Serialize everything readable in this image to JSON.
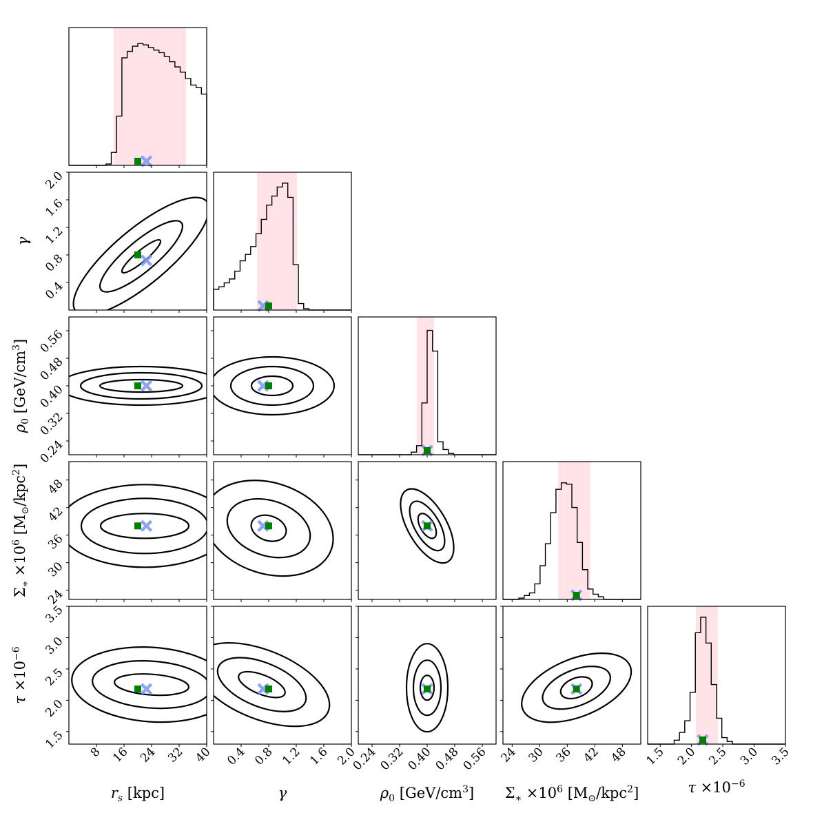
{
  "chart_data": {
    "type": "corner",
    "colors": {
      "credible_band": "#ffc0cb",
      "true_marker": "#008000",
      "best_fit_marker": "#7a96f0",
      "line": "#000000"
    },
    "markers": {
      "true_value": "green-square",
      "best_fit": "blue-cross"
    },
    "parameters": [
      {
        "key": "rs",
        "label": "r_s [kpc]",
        "range": [
          0,
          40
        ],
        "ticks": [
          8,
          16,
          24,
          32,
          40
        ],
        "tick_labels": [
          "8",
          "16",
          "24",
          "32",
          "40"
        ],
        "true_value": 20,
        "best_fit": 22.5,
        "band": [
          13.0,
          34.0
        ],
        "hist": [
          0,
          0,
          0,
          0,
          0,
          0,
          0,
          0.01,
          0.1,
          0.38,
          0.83,
          0.88,
          0.92,
          0.94,
          0.93,
          0.91,
          0.89,
          0.87,
          0.84,
          0.8,
          0.76,
          0.72,
          0.67,
          0.62,
          0.6,
          0.55
        ]
      },
      {
        "key": "gamma",
        "label": "γ",
        "range": [
          0,
          2.0
        ],
        "ticks": [
          0.4,
          0.8,
          1.2,
          1.6,
          2.0
        ],
        "tick_labels": [
          "0.4",
          "0.8",
          "1.2",
          "1.6",
          "2.0"
        ],
        "true_value": 0.8,
        "best_fit": 0.72,
        "band": [
          0.63,
          1.21
        ],
        "hist": [
          0.16,
          0.18,
          0.21,
          0.24,
          0.3,
          0.38,
          0.43,
          0.49,
          0.59,
          0.7,
          0.81,
          0.88,
          0.95,
          0.98,
          0.87,
          0.35,
          0.05,
          0.01,
          0,
          0,
          0,
          0,
          0,
          0,
          0,
          0
        ]
      },
      {
        "key": "rho0",
        "label": "ρ_0 [GeV/cm^3]",
        "range": [
          0.2,
          0.6
        ],
        "ticks": [
          0.24,
          0.32,
          0.4,
          0.48,
          0.56
        ],
        "tick_labels": [
          "0.24",
          "0.32",
          "0.40",
          "0.48",
          "0.56"
        ],
        "true_value": 0.4,
        "best_fit": 0.4,
        "band": [
          0.37,
          0.42
        ],
        "hist": [
          0,
          0,
          0,
          0,
          0,
          0,
          0,
          0,
          0,
          0,
          0.02,
          0.07,
          0.4,
          0.96,
          0.8,
          0.1,
          0.04,
          0.01,
          0,
          0,
          0,
          0,
          0,
          0,
          0,
          0
        ]
      },
      {
        "key": "sigma",
        "label": "Σ_* ×10^6 [M_⊙/kpc^2]",
        "range": [
          22,
          52
        ],
        "ticks": [
          24,
          30,
          36,
          42,
          48
        ],
        "tick_labels": [
          "24",
          "30",
          "36",
          "42",
          "48"
        ],
        "true_value": 38,
        "best_fit": 38,
        "band": [
          34.0,
          41.0
        ],
        "hist": [
          0,
          0,
          0,
          0.01,
          0.03,
          0.05,
          0.12,
          0.26,
          0.43,
          0.67,
          0.85,
          0.9,
          0.89,
          0.71,
          0.44,
          0.23,
          0.08,
          0.04,
          0.02,
          0,
          0,
          0,
          0,
          0,
          0,
          0
        ]
      },
      {
        "key": "tau",
        "label": "τ ×10^-6",
        "range": [
          1.3,
          3.5
        ],
        "ticks": [
          1.5,
          2.0,
          2.5,
          3.0,
          3.5
        ],
        "tick_labels": [
          "1.5",
          "2.0",
          "2.5",
          "3.0",
          "3.5"
        ],
        "true_value": 2.18,
        "best_fit": 2.18,
        "band": [
          2.07,
          2.42
        ],
        "hist": [
          0,
          0,
          0,
          0,
          0,
          0.03,
          0.09,
          0.18,
          0.4,
          0.86,
          0.98,
          0.78,
          0.46,
          0.2,
          0.05,
          0.02,
          0,
          0,
          0,
          0,
          0,
          0,
          0,
          0,
          0,
          0
        ]
      }
    ],
    "contours": [
      {
        "pair": [
          "gamma",
          "rs"
        ],
        "center": [
          21,
          0.78
        ],
        "tilt_deg": 40,
        "radii": [
          [
            0.18,
            0.04
          ],
          [
            0.38,
            0.11
          ],
          [
            0.62,
            0.2
          ]
        ]
      },
      {
        "pair": [
          "rho0",
          "rs"
        ],
        "center": [
          21,
          0.4
        ],
        "tilt_deg": 0,
        "radii": [
          [
            0.3,
            0.045
          ],
          [
            0.44,
            0.095
          ],
          [
            0.6,
            0.14
          ]
        ]
      },
      {
        "pair": [
          "sigma",
          "rs"
        ],
        "center": [
          22,
          38
        ],
        "tilt_deg": 0,
        "radii": [
          [
            0.32,
            0.09
          ],
          [
            0.46,
            0.2
          ],
          [
            0.62,
            0.3
          ]
        ]
      },
      {
        "pair": [
          "tau",
          "rs"
        ],
        "center": [
          24,
          2.25
        ],
        "tilt_deg": -4,
        "radii": [
          [
            0.27,
            0.075
          ],
          [
            0.43,
            0.17
          ],
          [
            0.58,
            0.27
          ]
        ]
      },
      {
        "pair": [
          "rho0",
          "gamma"
        ],
        "center": [
          0.85,
          0.4
        ],
        "tilt_deg": 0,
        "radii": [
          [
            0.15,
            0.07
          ],
          [
            0.3,
            0.14
          ],
          [
            0.45,
            0.21
          ]
        ]
      },
      {
        "pair": [
          "sigma",
          "gamma"
        ],
        "center": [
          0.8,
          37.5
        ],
        "tilt_deg": -18,
        "radii": [
          [
            0.13,
            0.09
          ],
          [
            0.31,
            0.2
          ],
          [
            0.48,
            0.33
          ]
        ]
      },
      {
        "pair": [
          "tau",
          "gamma"
        ],
        "center": [
          0.7,
          2.25
        ],
        "tilt_deg": -22,
        "radii": [
          [
            0.18,
            0.07
          ],
          [
            0.34,
            0.16
          ],
          [
            0.52,
            0.25
          ]
        ]
      },
      {
        "pair": [
          "sigma",
          "rho0"
        ],
        "center": [
          0.4,
          38
        ],
        "tilt_deg": -60,
        "radii": [
          [
            0.1,
            0.05
          ],
          [
            0.2,
            0.09
          ],
          [
            0.3,
            0.14
          ]
        ]
      },
      {
        "pair": [
          "tau",
          "rho0"
        ],
        "center": [
          0.4,
          2.2
        ],
        "tilt_deg": 0,
        "radii": [
          [
            0.05,
            0.09
          ],
          [
            0.1,
            0.2
          ],
          [
            0.15,
            0.32
          ]
        ]
      },
      {
        "pair": [
          "tau",
          "sigma"
        ],
        "center": [
          38,
          2.2
        ],
        "tilt_deg": 22,
        "radii": [
          [
            0.12,
            0.07
          ],
          [
            0.26,
            0.13
          ],
          [
            0.42,
            0.21
          ]
        ]
      }
    ]
  }
}
